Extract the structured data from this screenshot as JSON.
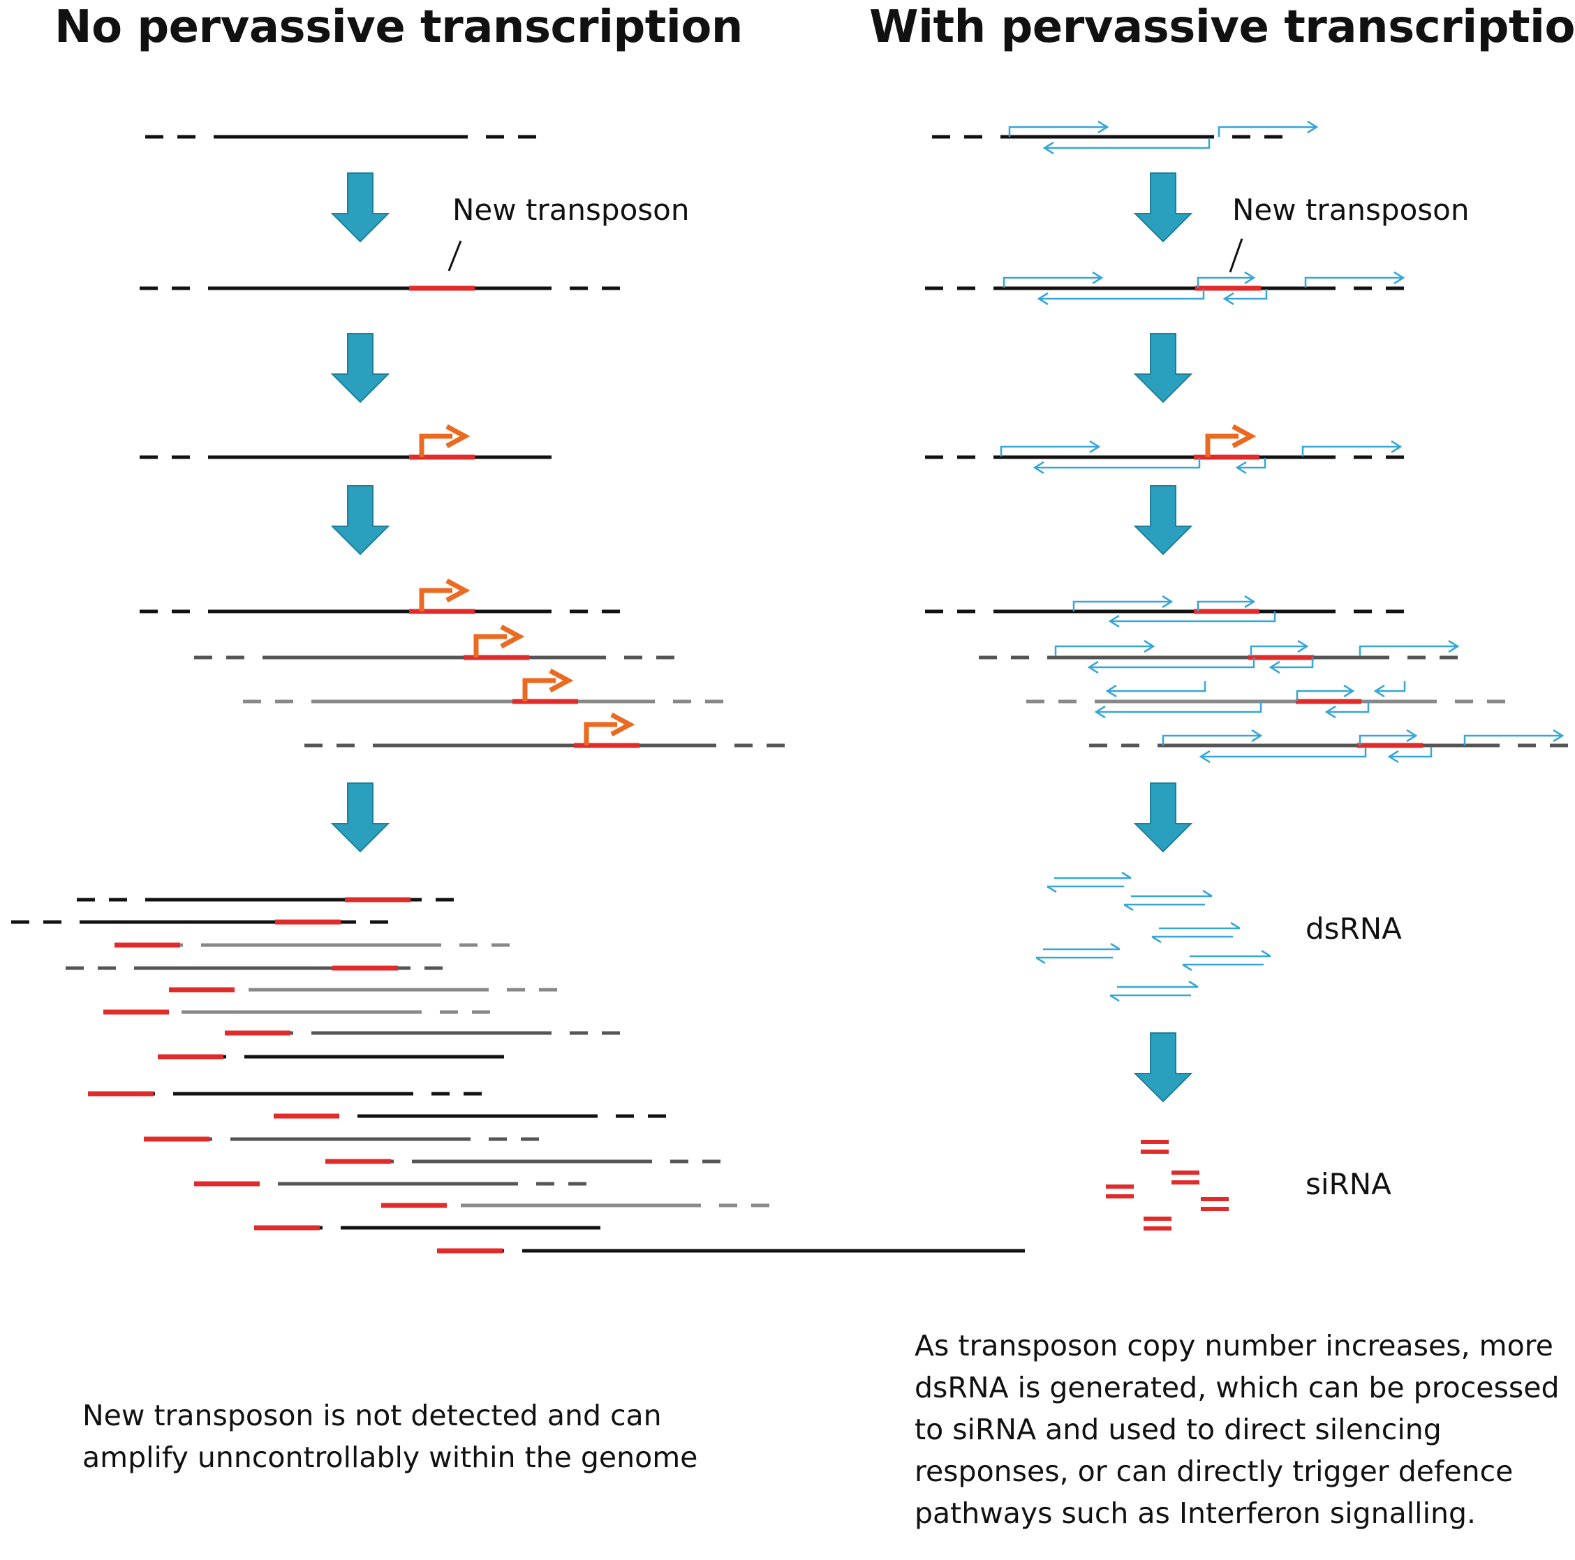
{
  "titles": {
    "left": "No pervassive transcription",
    "right": "With pervassive transcription"
  },
  "labels": {
    "new_transposon_left": "New transposon",
    "new_transposon_right": "New transposon",
    "dsrna": "dsRNA",
    "sirna": "siRNA"
  },
  "captions": {
    "left": [
      "New transposon is not detected and can",
      "amplify unncontrollably within the genome"
    ],
    "right": [
      "As transposon copy number increases, more",
      "dsRNA is generated, which can be processed",
      "to siRNA and used to direct silencing",
      "responses, or can directly trigger defence",
      "pathways such as Interferon signalling."
    ]
  },
  "colors": {
    "flow_arrow": "#2a9fbe",
    "flow_arrow_stroke": "#1f7f99",
    "transposon": "#e12b2b",
    "promoter_arrow": "#ea6a22",
    "transcript": "#35a6d6",
    "dna_dark": "#111111",
    "dna_grey": "#555555",
    "dna_light": "#888888"
  }
}
